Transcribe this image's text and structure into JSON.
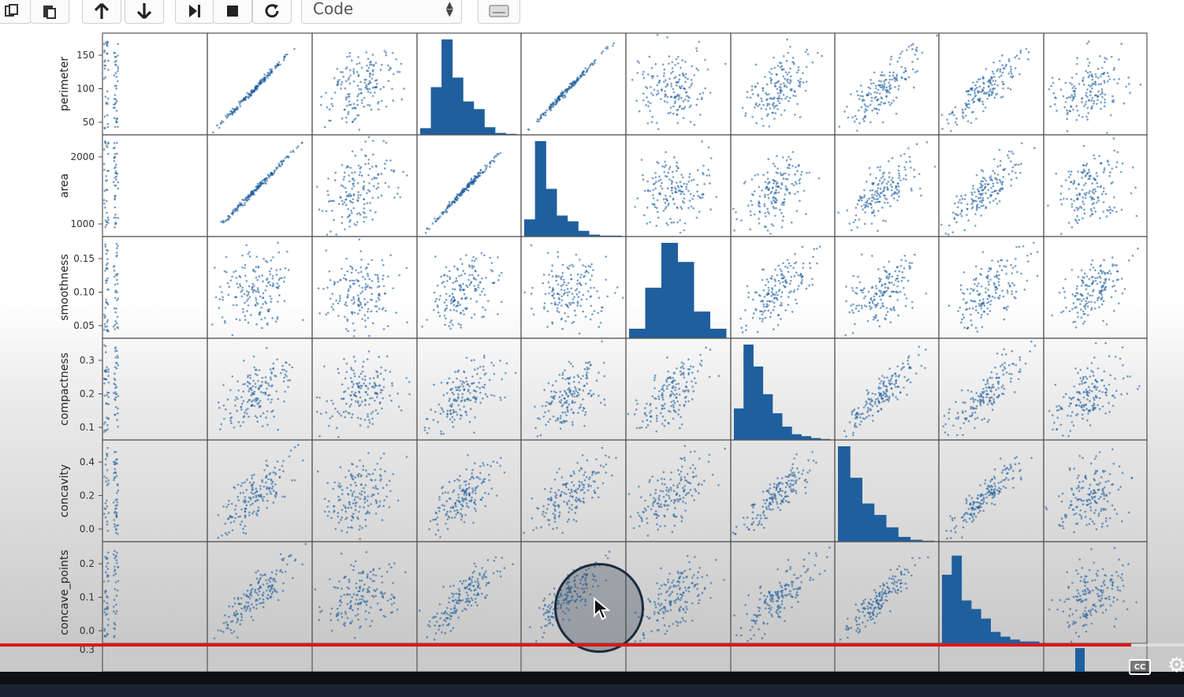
{
  "toolbar": {
    "cell_type_select": "Code",
    "buttons": {
      "copy": "copy-icon",
      "paste": "paste-icon",
      "move_up": "arrow-up-icon",
      "move_down": "arrow-down-icon",
      "run": "run-icon",
      "stop": "stop-icon",
      "restart": "restart-icon",
      "keyboard": "keyboard-icon"
    }
  },
  "chart_data": {
    "type": "scatter_matrix",
    "color": "#1f5f9e",
    "rows": [
      {
        "ylabel": "perimeter",
        "yticks": [
          "150",
          "100",
          "50"
        ],
        "hist_col": 3
      },
      {
        "ylabel": "area",
        "yticks": [
          "2000",
          "1000"
        ],
        "hist_col": 4
      },
      {
        "ylabel": "smoothness",
        "yticks": [
          "0.15",
          "0.10",
          "0.05"
        ],
        "hist_col": 5
      },
      {
        "ylabel": "compactness",
        "yticks": [
          "0.3",
          "0.2",
          "0.1"
        ],
        "hist_col": 6
      },
      {
        "ylabel": "concavity",
        "yticks": [
          "0.4",
          "0.2",
          "0.0"
        ],
        "hist_col": 7
      },
      {
        "ylabel": "concave_points",
        "yticks": [
          "0.2",
          "0.1",
          "0.0"
        ],
        "hist_col": 8
      }
    ],
    "partial_row": {
      "ytick": "0.3"
    },
    "histograms": [
      {
        "row": 0,
        "values": [
          0.07,
          0.5,
          1.0,
          0.6,
          0.35,
          0.27,
          0.08,
          0.02,
          0.01
        ]
      },
      {
        "row": 1,
        "values": [
          0.18,
          1.0,
          0.5,
          0.22,
          0.16,
          0.06,
          0.02,
          0.01,
          0.01
        ]
      },
      {
        "row": 2,
        "values": [
          0.1,
          0.53,
          1.0,
          0.8,
          0.28,
          0.1
        ]
      },
      {
        "row": 3,
        "values": [
          0.33,
          1.0,
          0.77,
          0.48,
          0.28,
          0.14,
          0.06,
          0.04,
          0.02,
          0.01
        ]
      },
      {
        "row": 4,
        "values": [
          1.0,
          0.67,
          0.4,
          0.28,
          0.15,
          0.05,
          0.02,
          0.01
        ]
      },
      {
        "row": 5,
        "values": [
          0.72,
          0.92,
          0.45,
          0.36,
          0.26,
          0.12,
          0.07,
          0.04,
          0.02,
          0.02
        ]
      }
    ],
    "correlations": [
      [
        1,
        1.0,
        0.35,
        1.0,
        0.99,
        0.2,
        0.55,
        0.72,
        0.85,
        0.2
      ],
      [
        1,
        0.99,
        0.35,
        0.99,
        1.0,
        0.18,
        0.5,
        0.68,
        0.82,
        0.2
      ],
      [
        1,
        0.17,
        -0.02,
        0.2,
        0.18,
        1.0,
        0.65,
        0.52,
        0.55,
        0.55
      ],
      [
        1,
        0.5,
        0.25,
        0.55,
        0.5,
        0.66,
        1.0,
        0.88,
        0.83,
        0.5
      ],
      [
        1,
        0.68,
        0.3,
        0.72,
        0.69,
        0.52,
        0.88,
        1.0,
        0.92,
        0.4
      ],
      [
        1,
        0.82,
        0.3,
        0.85,
        0.82,
        0.55,
        0.83,
        0.92,
        1.0,
        0.4
      ]
    ]
  },
  "video_controls": {
    "progress": 0.955,
    "progress_color": "#e0161a",
    "captions_label": "CC",
    "settings_icon": "gear-icon"
  }
}
